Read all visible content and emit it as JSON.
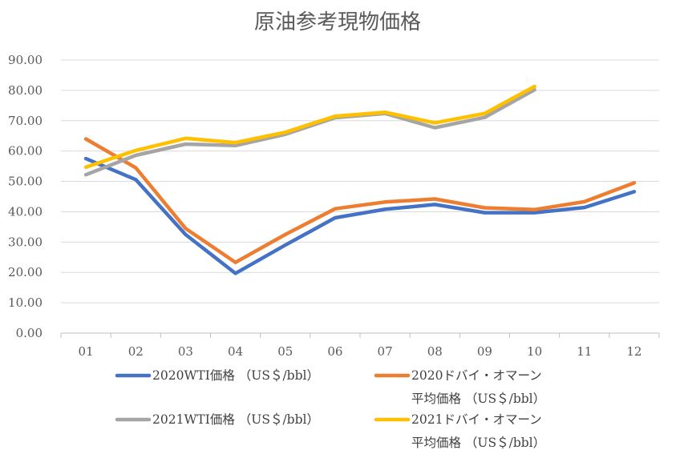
{
  "chart_data": {
    "type": "line",
    "title": "原油参考現物価格",
    "categories": [
      "01",
      "02",
      "03",
      "04",
      "05",
      "06",
      "07",
      "08",
      "09",
      "10",
      "11",
      "12"
    ],
    "y_ticks": [
      "0.00",
      "10.00",
      "20.00",
      "30.00",
      "40.00",
      "50.00",
      "60.00",
      "70.00",
      "80.00",
      "90.00"
    ],
    "ylim": [
      0,
      90
    ],
    "grid": true,
    "legend_position": "bottom",
    "series": [
      {
        "name": "2020WTI価格 （US＄/bbl）",
        "legend_lines": [
          "2020WTI価格 （US＄/bbl）"
        ],
        "color": "#4472C4",
        "values": [
          57.5,
          50.6,
          32.5,
          19.7,
          29.0,
          38.0,
          40.8,
          42.4,
          39.7,
          39.7,
          41.4,
          46.6
        ]
      },
      {
        "name": "2020ドバイ・オマーン平均価格 （US＄/bbl）",
        "legend_lines": [
          "2020ドバイ・オマーン",
          "平均価格 （US＄/bbl）"
        ],
        "color": "#ED7D31",
        "values": [
          64.0,
          54.5,
          34.5,
          23.3,
          32.5,
          41.0,
          43.2,
          44.2,
          41.3,
          40.7,
          43.3,
          49.5
        ]
      },
      {
        "name": "2021WTI価格 （US＄/bbl）",
        "legend_lines": [
          "2021WTI価格 （US＄/bbl）"
        ],
        "color": "#A5A5A5",
        "values": [
          52.2,
          58.6,
          62.3,
          61.8,
          65.5,
          71.0,
          72.4,
          67.7,
          71.1,
          80.2,
          null,
          null
        ]
      },
      {
        "name": "2021ドバイ・オマーン平均価格 （US＄/bbl）",
        "legend_lines": [
          "2021ドバイ・オマーン",
          "平均価格 （US＄/bbl）"
        ],
        "color": "#FFC000",
        "values": [
          54.7,
          60.2,
          64.2,
          62.8,
          66.2,
          71.5,
          72.8,
          69.3,
          72.4,
          81.3,
          null,
          null
        ]
      }
    ]
  }
}
